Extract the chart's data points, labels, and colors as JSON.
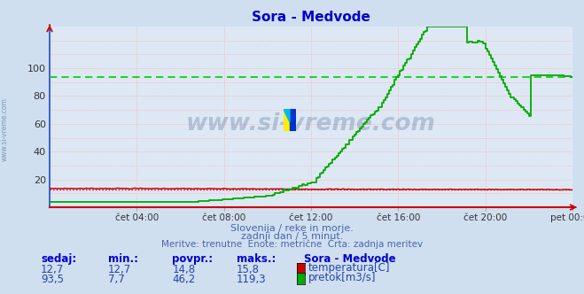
{
  "title": "Sora - Medvode",
  "title_color": "#0000cc",
  "bg_color": "#d0dff0",
  "plot_bg_color": "#dde8f4",
  "grid_color_h": "#ffaaaa",
  "grid_color_v": "#ffaaaa",
  "xlim": [
    0,
    288
  ],
  "ylim": [
    0,
    130
  ],
  "ytick_vals": [
    20,
    40,
    60,
    80,
    100
  ],
  "xtick_labels": [
    "čet 04:00",
    "čet 08:00",
    "čet 12:00",
    "čet 16:00",
    "čet 20:00",
    "pet 00:00"
  ],
  "xtick_positions": [
    48,
    96,
    144,
    192,
    240,
    288
  ],
  "temp_color": "#cc0000",
  "temp_dot_color": "#cc0000",
  "flow_color": "#00aa00",
  "flow_avg_color": "#00cc00",
  "flow_avg_value": 93.5,
  "temp_avg_value": 12.7,
  "watermark": "www.si-vreme.com",
  "watermark_color": "#1a3a6a",
  "subtitle1": "Slovenija / reke in morje.",
  "subtitle2": "zadnji dan / 5 minut.",
  "subtitle3": "Meritve: trenutne  Enote: metrične  Črta: zadnja meritev",
  "subtitle_color": "#4466aa",
  "legend_title": "Sora - Medvode",
  "legend_color": "#0000cc",
  "table_headers": [
    "sedaj:",
    "min.:",
    "povpr.:",
    "maks.:"
  ],
  "table_row1": [
    "12,7",
    "12,7",
    "14,8",
    "15,8"
  ],
  "table_row2": [
    "93,5",
    "7,7",
    "46,2",
    "119,3"
  ],
  "table_color": "#2244aa",
  "sidebar_text": "www.si-vreme.com",
  "sidebar_color": "#6688aa",
  "left_spine_color": "#4466cc",
  "bottom_spine_color": "#cc0000"
}
